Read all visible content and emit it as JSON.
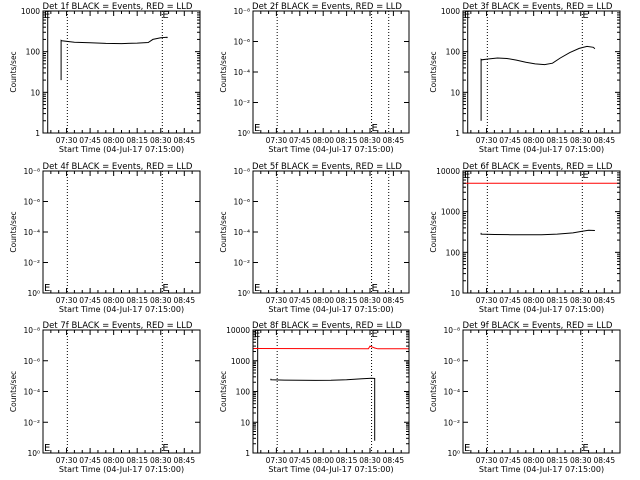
{
  "chart_data": [
    {
      "type": "line",
      "title": "Det 1f BLACK = Events, RED = LLD",
      "xlabel": "Start Time (04-Jul-17 07:15:00)",
      "ylabel": "Counts/sec",
      "x_tick_labels": [
        "07:30",
        "07:45",
        "08:00",
        "08:15",
        "08:30",
        "08:45"
      ],
      "x_ticks_min": [
        15,
        30,
        45,
        60,
        75,
        90
      ],
      "xlim_min": [
        0,
        100
      ],
      "yscale": "log",
      "ylim": [
        1,
        1000
      ],
      "y_tick_labels": [
        "1",
        "10",
        "100",
        "1000"
      ],
      "y_ticks": [
        1,
        10,
        100,
        1000
      ],
      "markers": [
        {
          "label": "E",
          "x": 0
        },
        {
          "label": "E",
          "x": 76
        }
      ],
      "marker_y": 1000,
      "vlines": [
        {
          "x": 3,
          "style": "solid"
        },
        {
          "x": 15.5,
          "style": "dotted"
        },
        {
          "x": 76,
          "style": "dotted"
        }
      ],
      "series": [
        {
          "color": "#000000",
          "points": [
            [
              11.5,
              20
            ],
            [
              11.5,
              190
            ],
            [
              12,
              185
            ],
            [
              20,
              170
            ],
            [
              30,
              165
            ],
            [
              40,
              160
            ],
            [
              50,
              158
            ],
            [
              60,
              162
            ],
            [
              67,
              168
            ],
            [
              70,
              200
            ],
            [
              75,
              220
            ],
            [
              79,
              225
            ],
            [
              79.2,
              215
            ]
          ]
        }
      ]
    },
    {
      "type": "line",
      "title": "Det 2f BLACK = Events, RED = LLD",
      "xlabel": "Start Time (04-Jul-17 07:15:00)",
      "ylabel": "Counts/sec",
      "x_tick_labels": [
        "07:30",
        "07:45",
        "08:00",
        "08:15",
        "08:30",
        "08:45"
      ],
      "x_ticks_min": [
        15,
        30,
        45,
        60,
        75,
        90
      ],
      "xlim_min": [
        0,
        100
      ],
      "yscale": "log",
      "ylim": [
        1,
        1e-08
      ],
      "y_tick_labels": [
        "10⁰",
        "10⁻²",
        "10⁻⁴",
        "10⁻⁶",
        "10⁻⁸"
      ],
      "y_ticks": [
        1,
        0.01,
        0.0001,
        1e-06,
        1e-08
      ],
      "markers": [
        {
          "label": "E",
          "x": 0
        },
        {
          "label": "E",
          "x": 76
        }
      ],
      "marker_y": 0.8,
      "vlines": [
        {
          "x": 15.5,
          "style": "dotted"
        },
        {
          "x": 76,
          "style": "dotted"
        },
        {
          "x": 87,
          "style": "dotted"
        }
      ],
      "series": []
    },
    {
      "type": "line",
      "title": "Det 3f BLACK = Events, RED = LLD",
      "xlabel": "Start Time (04-Jul-17 07:15:00)",
      "ylabel": "Counts/sec",
      "x_tick_labels": [
        "07:30",
        "07:45",
        "08:00",
        "08:15",
        "08:30",
        "08:45"
      ],
      "x_ticks_min": [
        15,
        30,
        45,
        60,
        75,
        90
      ],
      "xlim_min": [
        0,
        100
      ],
      "yscale": "log",
      "ylim": [
        1,
        1000
      ],
      "y_tick_labels": [
        "1",
        "10",
        "100",
        "1000"
      ],
      "y_ticks": [
        1,
        10,
        100,
        1000
      ],
      "markers": [
        {
          "label": "E",
          "x": 0
        },
        {
          "label": "E",
          "x": 76
        }
      ],
      "marker_y": 1000,
      "vlines": [
        {
          "x": 3,
          "style": "solid"
        },
        {
          "x": 15.5,
          "style": "dotted"
        },
        {
          "x": 76,
          "style": "dotted"
        }
      ],
      "series": [
        {
          "color": "#000000",
          "points": [
            [
              11.5,
              2
            ],
            [
              11.5,
              65
            ],
            [
              12,
              63
            ],
            [
              16,
              66
            ],
            [
              22,
              70
            ],
            [
              28,
              68
            ],
            [
              34,
              62
            ],
            [
              40,
              55
            ],
            [
              46,
              50
            ],
            [
              52,
              48
            ],
            [
              57,
              52
            ],
            [
              62,
              70
            ],
            [
              68,
              95
            ],
            [
              74,
              120
            ],
            [
              79,
              135
            ],
            [
              83,
              128
            ],
            [
              84,
              118
            ]
          ]
        }
      ]
    },
    {
      "type": "line",
      "title": "Det 4f BLACK = Events, RED = LLD",
      "xlabel": "Start Time (04-Jul-17 07:15:00)",
      "ylabel": "Counts/sec",
      "x_tick_labels": [
        "07:30",
        "07:45",
        "08:00",
        "08:15",
        "08:30",
        "08:45"
      ],
      "x_ticks_min": [
        15,
        30,
        45,
        60,
        75,
        90
      ],
      "xlim_min": [
        0,
        100
      ],
      "yscale": "log",
      "ylim": [
        1,
        1e-08
      ],
      "y_tick_labels": [
        "10⁰",
        "10⁻²",
        "10⁻⁴",
        "10⁻⁶",
        "10⁻⁸"
      ],
      "y_ticks": [
        1,
        0.01,
        0.0001,
        1e-06,
        1e-08
      ],
      "markers": [
        {
          "label": "E",
          "x": 0
        },
        {
          "label": "E",
          "x": 76
        }
      ],
      "marker_y": 0.8,
      "vlines": [
        {
          "x": 15.5,
          "style": "dotted"
        },
        {
          "x": 76,
          "style": "dotted"
        }
      ],
      "series": []
    },
    {
      "type": "line",
      "title": "Det 5f BLACK = Events, RED = LLD",
      "xlabel": "Start Time (04-Jul-17 07:15:00)",
      "ylabel": "Counts/sec",
      "x_tick_labels": [
        "07:30",
        "07:45",
        "08:00",
        "08:15",
        "08:30",
        "08:45"
      ],
      "x_ticks_min": [
        15,
        30,
        45,
        60,
        75,
        90
      ],
      "xlim_min": [
        0,
        100
      ],
      "yscale": "log",
      "ylim": [
        1,
        1e-08
      ],
      "y_tick_labels": [
        "10⁰",
        "10⁻²",
        "10⁻⁴",
        "10⁻⁶",
        "10⁻⁸"
      ],
      "y_ticks": [
        1,
        0.01,
        0.0001,
        1e-06,
        1e-08
      ],
      "markers": [
        {
          "label": "E",
          "x": 0
        },
        {
          "label": "E",
          "x": 76
        }
      ],
      "marker_y": 0.8,
      "vlines": [
        {
          "x": 15.5,
          "style": "dotted"
        },
        {
          "x": 76,
          "style": "dotted"
        },
        {
          "x": 87,
          "style": "dotted"
        }
      ],
      "series": []
    },
    {
      "type": "line",
      "title": "Det 6f BLACK = Events, RED = LLD",
      "xlabel": "Start Time (04-Jul-17 07:15:00)",
      "ylabel": "Counts/sec",
      "x_tick_labels": [
        "07:30",
        "07:45",
        "08:00",
        "08:15",
        "08:30",
        "08:45"
      ],
      "x_ticks_min": [
        15,
        30,
        45,
        60,
        75,
        90
      ],
      "xlim_min": [
        0,
        100
      ],
      "yscale": "log",
      "ylim": [
        10,
        10000
      ],
      "y_tick_labels": [
        "10",
        "100",
        "1000",
        "10000"
      ],
      "y_ticks": [
        10,
        100,
        1000,
        10000
      ],
      "markers": [
        {
          "label": "E",
          "x": 0
        },
        {
          "label": "E",
          "x": 76
        }
      ],
      "marker_y": 10000,
      "vlines": [
        {
          "x": 3,
          "style": "solid"
        },
        {
          "x": 15.5,
          "style": "dotted"
        },
        {
          "x": 76,
          "style": "dotted"
        }
      ],
      "series": [
        {
          "color": "#ff0000",
          "points": [
            [
              0,
              5000
            ],
            [
              100,
              5000
            ]
          ]
        },
        {
          "color": "#000000",
          "points": [
            [
              11.5,
              300
            ],
            [
              11.5,
              280
            ],
            [
              20,
              275
            ],
            [
              30,
              272
            ],
            [
              40,
              270
            ],
            [
              50,
              272
            ],
            [
              60,
              280
            ],
            [
              70,
              300
            ],
            [
              76,
              330
            ],
            [
              80,
              350
            ],
            [
              84,
              345
            ]
          ]
        }
      ]
    },
    {
      "type": "line",
      "title": "Det 7f BLACK = Events, RED = LLD",
      "xlabel": "Start Time (04-Jul-17 07:15:00)",
      "ylabel": "Counts/sec",
      "x_tick_labels": [
        "07:30",
        "07:45",
        "08:00",
        "08:15",
        "08:30",
        "08:45"
      ],
      "x_ticks_min": [
        15,
        30,
        45,
        60,
        75,
        90
      ],
      "xlim_min": [
        0,
        100
      ],
      "yscale": "log",
      "ylim": [
        1,
        1e-08
      ],
      "y_tick_labels": [
        "10⁰",
        "10⁻²",
        "10⁻⁴",
        "10⁻⁶",
        "10⁻⁸"
      ],
      "y_ticks": [
        1,
        0.01,
        0.0001,
        1e-06,
        1e-08
      ],
      "markers": [
        {
          "label": "E",
          "x": 0
        },
        {
          "label": "E",
          "x": 76
        }
      ],
      "marker_y": 0.8,
      "vlines": [
        {
          "x": 15.5,
          "style": "dotted"
        },
        {
          "x": 76,
          "style": "dotted"
        }
      ],
      "series": []
    },
    {
      "type": "line",
      "title": "Det 8f BLACK = Events, RED = LLD",
      "xlabel": "Start Time (04-Jul-17 07:15:00)",
      "ylabel": "Counts/sec",
      "x_tick_labels": [
        "07:30",
        "07:45",
        "08:00",
        "08:15",
        "08:30",
        "08:45"
      ],
      "x_ticks_min": [
        15,
        30,
        45,
        60,
        75,
        90
      ],
      "xlim_min": [
        0,
        100
      ],
      "yscale": "log",
      "ylim": [
        1,
        10000
      ],
      "y_tick_labels": [
        "1",
        "10",
        "100",
        "1000",
        "10000"
      ],
      "y_ticks": [
        1,
        10,
        100,
        1000,
        10000
      ],
      "markers": [
        {
          "label": "E",
          "x": 0
        },
        {
          "label": "E",
          "x": 76
        }
      ],
      "marker_y": 10000,
      "vlines": [
        {
          "x": 3,
          "style": "solid"
        },
        {
          "x": 15.5,
          "style": "dotted"
        },
        {
          "x": 76,
          "style": "dotted"
        }
      ],
      "series": [
        {
          "color": "#ff0000",
          "points": [
            [
              0,
              2500
            ],
            [
              74,
              2450
            ],
            [
              75,
              3000
            ],
            [
              78,
              2600
            ],
            [
              80,
              2450
            ],
            [
              100,
              2450
            ]
          ]
        },
        {
          "color": "#000000",
          "points": [
            [
              11.5,
              260
            ],
            [
              11.5,
              240
            ],
            [
              20,
              235
            ],
            [
              30,
              232
            ],
            [
              40,
              230
            ],
            [
              50,
              232
            ],
            [
              60,
              240
            ],
            [
              70,
              260
            ],
            [
              76,
              270
            ],
            [
              78,
              265
            ],
            [
              78,
              2.5
            ]
          ]
        }
      ]
    },
    {
      "type": "line",
      "title": "Det 9f BLACK = Events, RED = LLD",
      "xlabel": "Start Time (04-Jul-17 07:15:00)",
      "ylabel": "Counts/sec",
      "x_tick_labels": [
        "07:30",
        "07:45",
        "08:00",
        "08:15",
        "08:30",
        "08:45"
      ],
      "x_ticks_min": [
        15,
        30,
        45,
        60,
        75,
        90
      ],
      "xlim_min": [
        0,
        100
      ],
      "yscale": "log",
      "ylim": [
        1,
        1e-08
      ],
      "y_tick_labels": [
        "10⁰",
        "10⁻²",
        "10⁻⁴",
        "10⁻⁶",
        "10⁻⁸"
      ],
      "y_ticks": [
        1,
        0.01,
        0.0001,
        1e-06,
        1e-08
      ],
      "markers": [
        {
          "label": "E",
          "x": 0
        },
        {
          "label": "E",
          "x": 76
        }
      ],
      "marker_y": 0.8,
      "vlines": [
        {
          "x": 15.5,
          "style": "dotted"
        },
        {
          "x": 76,
          "style": "dotted"
        }
      ],
      "series": []
    }
  ]
}
